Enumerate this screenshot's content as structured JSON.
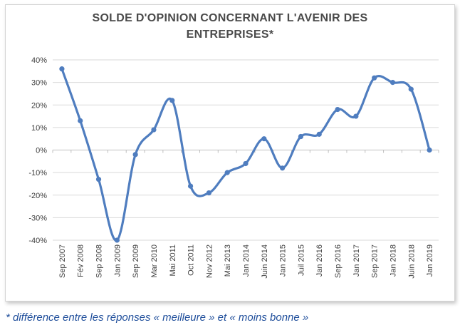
{
  "chart_data": {
    "type": "line",
    "title_lines": [
      "SOLDE D'OPINION CONCERNANT L'AVENIR DES",
      "ENTREPRISES*"
    ],
    "categories": [
      "Sep 2007",
      "Fév 2008",
      "Sep 2008",
      "Jan 2009",
      "Sep 2009",
      "Mar 2010",
      "Mai 2011",
      "Oct 2011",
      "Nov 2012",
      "Mai 2013",
      "Jan 2014",
      "Juin 2014",
      "Jan 2015",
      "Juil 2015",
      "Jan 2016",
      "Sep 2016",
      "Jan 2017",
      "Sep 2017",
      "Jan 2018",
      "Juin 2018",
      "Jan 2019"
    ],
    "series": [
      {
        "values": [
          36,
          13,
          -13,
          -40,
          -2,
          9,
          22,
          -16,
          -19,
          -10,
          -6,
          5,
          -8,
          6,
          7,
          18,
          15,
          32,
          30,
          27,
          0
        ],
        "color": "#4f7dbf"
      }
    ],
    "yticks": [
      "40%",
      "30%",
      "20%",
      "10%",
      "0%",
      "-10%",
      "-20%",
      "-30%",
      "-40%"
    ],
    "ytick_values": [
      40,
      30,
      20,
      10,
      0,
      -10,
      -20,
      -30,
      -40
    ],
    "ylim": [
      -40,
      40
    ],
    "xlabel": "",
    "ylabel": "",
    "grid": true,
    "legend": "none"
  },
  "footnote": "* différence entre les réponses « meilleure » et « moins bonne »"
}
